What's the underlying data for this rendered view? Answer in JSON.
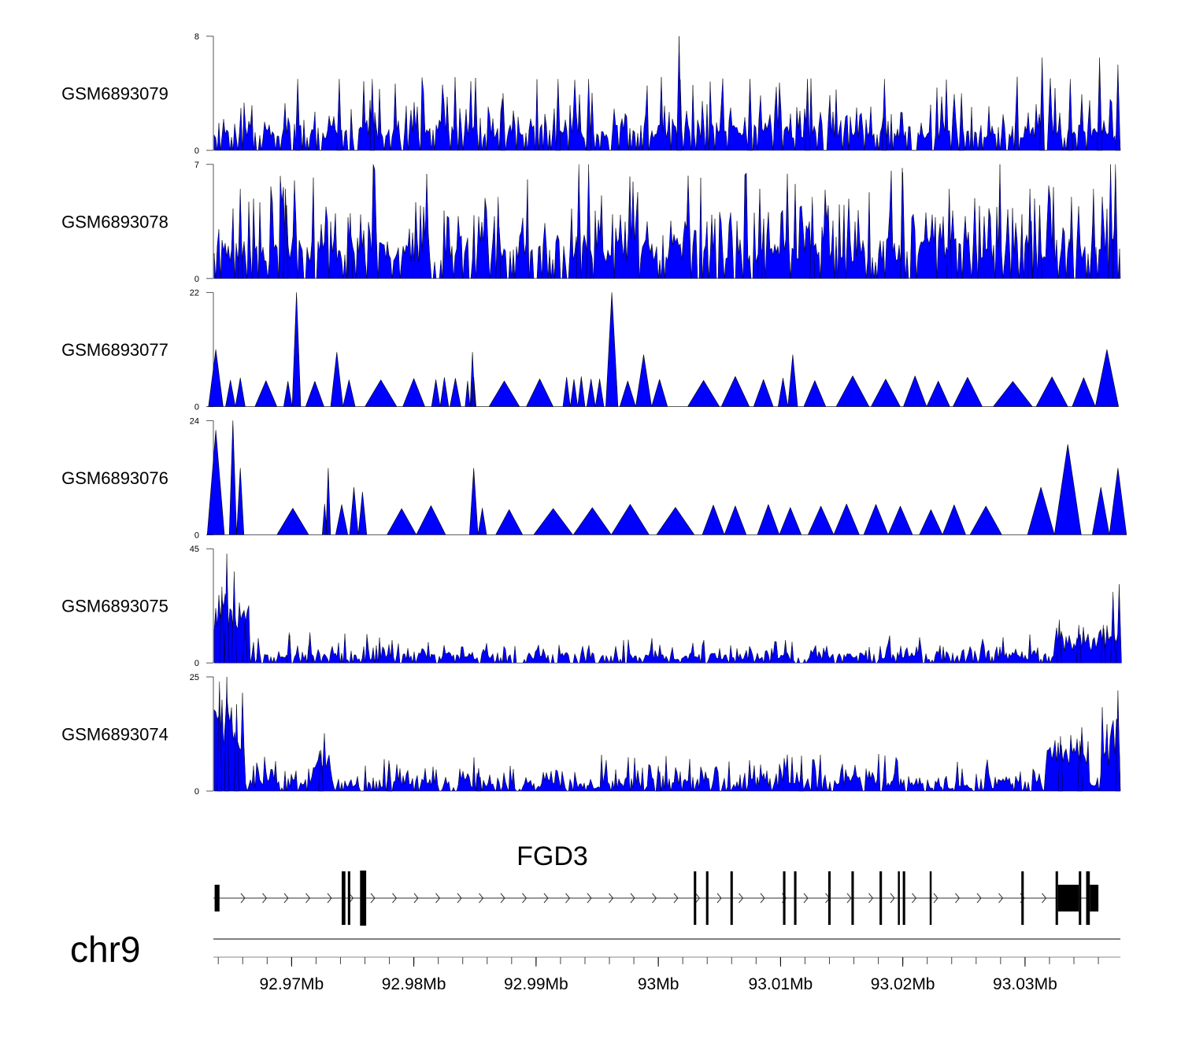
{
  "colors": {
    "signal": "#0000ff",
    "outline": "#000000"
  },
  "chart_data": {
    "type": "area",
    "title": "",
    "chromosome": "chr9",
    "xlim_mb": [
      92.9636,
      93.0378
    ],
    "gene": {
      "name": "FGD3",
      "strand": "+",
      "start_mb": 92.9636,
      "end_mb": 93.0358
    },
    "exons": [
      {
        "start": 92.9637,
        "end": 92.9641
      },
      {
        "start": 92.9741,
        "end": 92.9744
      },
      {
        "start": 92.9746,
        "end": 92.9748
      },
      {
        "start": 92.9756,
        "end": 92.9761
      },
      {
        "start": 93.0029,
        "end": 93.0031
      },
      {
        "start": 93.0039,
        "end": 93.0041
      },
      {
        "start": 93.0059,
        "end": 93.0061
      },
      {
        "start": 93.0102,
        "end": 93.0104
      },
      {
        "start": 93.0111,
        "end": 93.0113
      },
      {
        "start": 93.0139,
        "end": 93.0141
      },
      {
        "start": 93.0158,
        "end": 93.016
      },
      {
        "start": 93.0181,
        "end": 93.0183
      },
      {
        "start": 93.0196,
        "end": 93.0197
      },
      {
        "start": 93.02,
        "end": 93.0202
      },
      {
        "start": 93.0222,
        "end": 93.0223
      },
      {
        "start": 93.0297,
        "end": 93.0299
      },
      {
        "start": 93.0325,
        "end": 93.0327
      },
      {
        "start": 93.0327,
        "end": 93.0344
      },
      {
        "start": 93.0344,
        "end": 93.0346
      },
      {
        "start": 93.035,
        "end": 93.0353
      },
      {
        "start": 93.0353,
        "end": 93.036
      }
    ],
    "axis_ticks": [
      {
        "mb": 92.97,
        "label": "92.97Mb"
      },
      {
        "mb": 92.98,
        "label": "92.98Mb"
      },
      {
        "mb": 92.99,
        "label": "92.99Mb"
      },
      {
        "mb": 93.0,
        "label": "93Mb"
      },
      {
        "mb": 93.01,
        "label": "93.01Mb"
      },
      {
        "mb": 93.02,
        "label": "93.02Mb"
      },
      {
        "mb": 93.03,
        "label": "93.03Mb"
      }
    ],
    "tracks": [
      {
        "name": "GSM6893079",
        "ymax": 8,
        "ymax_label": "8",
        "ymin_label": "0",
        "peaks": [
          [
            92.9705,
            5
          ],
          [
            92.9739,
            5
          ],
          [
            92.9766,
            5
          ],
          [
            92.9873,
            4
          ],
          [
            92.9918,
            5
          ],
          [
            92.9943,
            5
          ],
          [
            93.0017,
            8
          ],
          [
            93.0075,
            5
          ],
          [
            93.0122,
            5
          ],
          [
            93.0185,
            5
          ],
          [
            93.0248,
            4
          ],
          [
            93.0314,
            6.5
          ],
          [
            93.0337,
            5
          ],
          [
            93.0361,
            6.5
          ],
          [
            93.0376,
            6
          ]
        ],
        "baseline": [
          0.8,
          1.8
        ],
        "seed": 11
      },
      {
        "name": "GSM6893078",
        "ymax": 7,
        "ymax_label": "7",
        "ymin_label": "0",
        "peaks": [
          [
            92.9658,
            5.5
          ],
          [
            92.9695,
            5.5
          ],
          [
            92.9748,
            4
          ],
          [
            92.9869,
            5
          ],
          [
            92.9935,
            7
          ],
          [
            92.9943,
            7
          ],
          [
            93.0083,
            5.5
          ],
          [
            93.0126,
            5
          ],
          [
            93.02,
            6.5
          ],
          [
            93.0238,
            5.5
          ],
          [
            93.0304,
            5.5
          ],
          [
            93.0312,
            4.5
          ],
          [
            93.0338,
            5
          ],
          [
            93.0356,
            5.5
          ],
          [
            93.037,
            7
          ],
          [
            93.0374,
            7
          ]
        ],
        "baseline": [
          1,
          2.5
        ],
        "seed": 23
      },
      {
        "name": "GSM6893077",
        "ymax": 22,
        "ymax_label": "22",
        "ymin_label": "0",
        "peaks": [
          [
            92.9638,
            11
          ],
          [
            92.9704,
            22
          ],
          [
            92.9737,
            10.5
          ],
          [
            92.9848,
            10.5
          ],
          [
            92.9962,
            22
          ],
          [
            92.9988,
            10
          ],
          [
            93.011,
            10
          ],
          [
            93.0367,
            11
          ]
        ],
        "triangles": [
          92.965,
          92.9658,
          92.9679,
          92.9697,
          92.9719,
          92.9747,
          92.9773,
          92.98,
          92.9818,
          92.9825,
          92.9834,
          92.9844,
          92.9849,
          92.9874,
          92.9903,
          92.9925,
          92.9931,
          92.9937,
          92.9945,
          92.9952,
          92.9975,
          93.0001,
          93.0037,
          93.0063,
          93.0086,
          93.0102,
          93.0128,
          93.0159,
          93.0186,
          93.021,
          93.0229,
          93.0253,
          93.029,
          93.0322,
          93.0348
        ],
        "seed": 37
      },
      {
        "name": "GSM6893076",
        "ymax": 24,
        "ymax_label": "24",
        "ymin_label": "0",
        "peaks": [
          [
            92.9638,
            22
          ],
          [
            92.9652,
            24
          ],
          [
            92.9658,
            14
          ],
          [
            92.973,
            14
          ],
          [
            92.9751,
            10
          ],
          [
            92.9849,
            14
          ],
          [
            92.9758,
            9
          ],
          [
            93.0313,
            10
          ],
          [
            93.0335,
            19
          ],
          [
            93.0362,
            10
          ],
          [
            93.0376,
            14
          ]
        ],
        "triangles": [
          92.9701,
          92.9727,
          92.9741,
          92.979,
          92.9814,
          92.9856,
          92.9878,
          92.9914,
          92.9946,
          92.9977,
          93.0014,
          93.0045,
          93.0063,
          93.009,
          93.0108,
          93.0133,
          93.0154,
          93.0178,
          93.0198,
          93.0223,
          93.0242,
          93.0268
        ],
        "seed": 41
      },
      {
        "name": "GSM6893075",
        "ymax": 45,
        "ymax_label": "45",
        "ymin_label": "0",
        "peaks": [
          [
            92.9643,
            30
          ],
          [
            92.9647,
            43
          ],
          [
            92.9653,
            36
          ],
          [
            92.9662,
            17
          ],
          [
            92.9698,
            12
          ],
          [
            92.9715,
            12
          ],
          [
            93.0104,
            9
          ],
          [
            93.0328,
            17
          ],
          [
            93.0344,
            15
          ],
          [
            93.0364,
            15
          ],
          [
            93.0372,
            28
          ],
          [
            93.0377,
            31
          ]
        ],
        "bulges": [
          [
            92.9636,
            92.9665,
            22
          ],
          [
            93.0324,
            93.0378,
            9
          ]
        ],
        "baseline": [
          1,
          4
        ],
        "seed": 53
      },
      {
        "name": "GSM6893074",
        "ymax": 25,
        "ymax_label": "25",
        "ymin_label": "0",
        "peaks": [
          [
            92.9641,
            24
          ],
          [
            92.9647,
            25
          ],
          [
            92.9655,
            19
          ],
          [
            92.9724,
            9
          ],
          [
            92.978,
            6
          ],
          [
            92.9853,
            5
          ],
          [
            93.0,
            5.5
          ],
          [
            93.0117,
            5.5
          ],
          [
            93.0329,
            12
          ],
          [
            93.0345,
            11
          ],
          [
            93.0376,
            22
          ]
        ],
        "bulges": [
          [
            92.9636,
            92.9662,
            17
          ],
          [
            92.9716,
            92.973,
            5
          ],
          [
            93.0316,
            93.0352,
            8
          ],
          [
            93.0362,
            93.0378,
            12
          ]
        ],
        "baseline": [
          0.5,
          2.8
        ],
        "seed": 67
      }
    ]
  }
}
